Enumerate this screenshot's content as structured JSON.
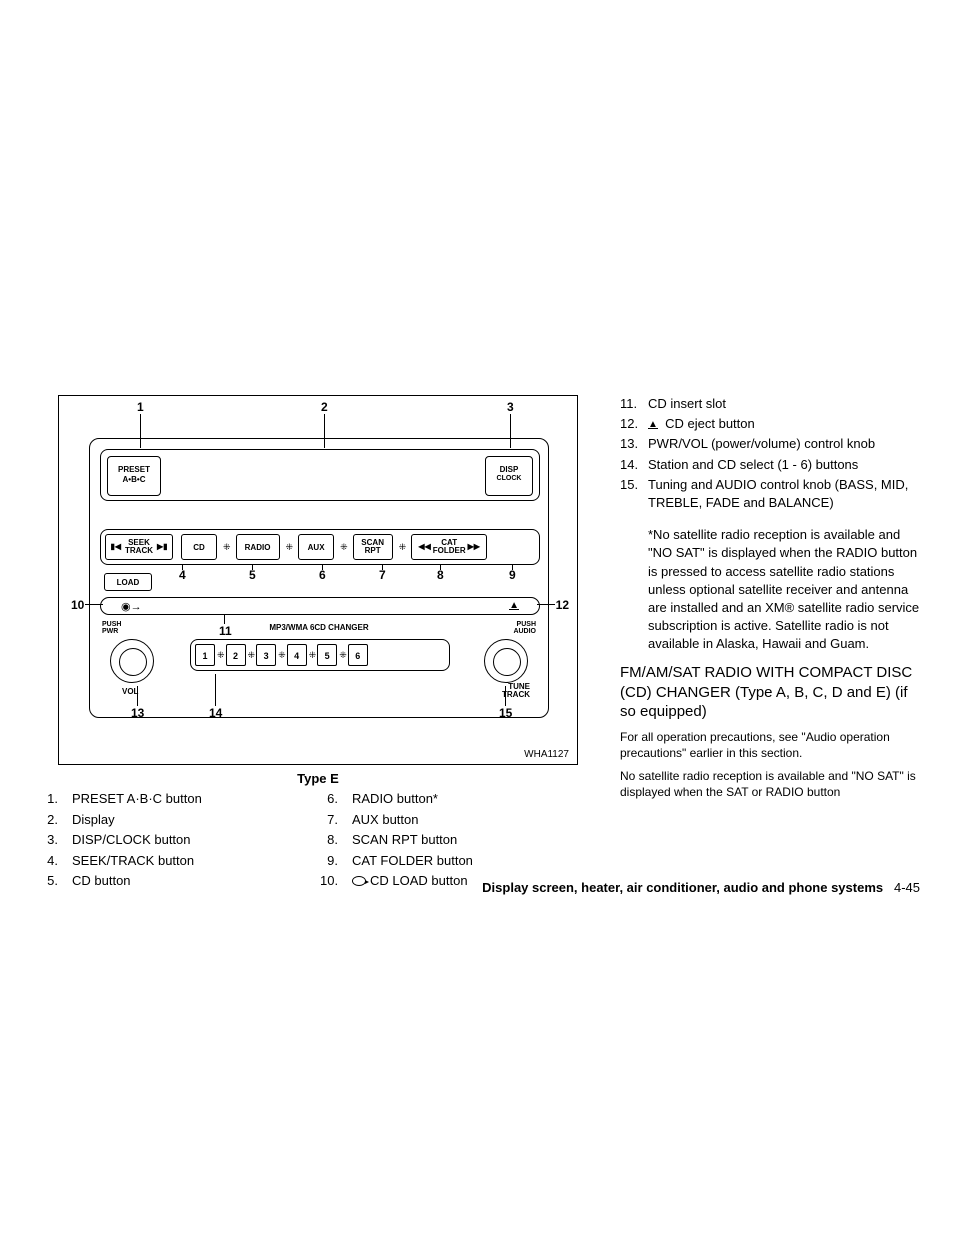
{
  "diagram": {
    "figure_code": "WHA1127",
    "type_label": "Type E",
    "preset_label_line1": "PRESET",
    "preset_label_line2": "A•B•C",
    "disp_label_line1": "DISP",
    "disp_label_line2": "CLOCK",
    "seek_label_line1": "SEEK",
    "seek_label_line2": "TRACK",
    "btn_cd": "CD",
    "btn_radio": "RADIO",
    "btn_aux": "AUX",
    "btn_scan_line1": "SCAN",
    "btn_scan_line2": "RPT",
    "btn_cat_line1": "CAT",
    "btn_cat_line2": "FOLDER",
    "btn_load": "LOAD",
    "push_pwr_line1": "PUSH",
    "push_pwr_line2": "PWR",
    "push_audio_line1": "PUSH",
    "push_audio_line2": "AUDIO",
    "vol_label": "VOL",
    "tune_label_line1": "TUNE",
    "tune_label_line2": "TRACK",
    "changer_label": "MP3/WMA 6CD CHANGER",
    "preset_numbers": [
      "1",
      "2",
      "3",
      "4",
      "5",
      "6"
    ],
    "callouts": {
      "1": "1",
      "2": "2",
      "3": "3",
      "4": "4",
      "5": "5",
      "6": "6",
      "7": "7",
      "8": "8",
      "9": "9",
      "10": "10",
      "11": "11",
      "12": "12",
      "13": "13",
      "14": "14",
      "15": "15"
    }
  },
  "legend_left": [
    {
      "n": "1.",
      "t": "PRESET A·B·C button"
    },
    {
      "n": "2.",
      "t": "Display"
    },
    {
      "n": "3.",
      "t": "DISP/CLOCK button"
    },
    {
      "n": "4.",
      "t": "SEEK/TRACK button"
    },
    {
      "n": "5.",
      "t": "CD button"
    }
  ],
  "legend_right": [
    {
      "n": "6.",
      "t": "RADIO button*"
    },
    {
      "n": "7.",
      "t": "AUX button"
    },
    {
      "n": "8.",
      "t": "SCAN RPT button"
    },
    {
      "n": "9.",
      "t": "CAT FOLDER button"
    },
    {
      "n": "10.",
      "t": "CD LOAD button",
      "icon": "cdload"
    }
  ],
  "right_list": [
    {
      "n": "11.",
      "t": "CD insert slot"
    },
    {
      "n": "12.",
      "t": "CD eject button",
      "icon": "eject"
    },
    {
      "n": "13.",
      "t": "PWR/VOL (power/volume) control knob"
    },
    {
      "n": "14.",
      "t": "Station and CD select (1 - 6) buttons"
    },
    {
      "n": "15.",
      "t": "Tuning and AUDIO control knob (BASS, MID, TREBLE, FADE and BALANCE)"
    }
  ],
  "note": "*No satellite radio reception is available and \"NO SAT\" is displayed when the RADIO button is pressed to access satellite radio stations unless optional satellite receiver and antenna are installed and an XM® satellite radio service subscription is active. Satellite radio is not available in Alaska, Hawaii and Guam.",
  "heading": "FM/AM/SAT RADIO WITH COMPACT DISC (CD) CHANGER (Type A, B, C, D and E) (if so equipped)",
  "para1": "For all operation precautions, see \"Audio operation precautions\" earlier in this section.",
  "para2": "No satellite radio reception is available and \"NO SAT\" is displayed when the SAT or RADIO button",
  "footer_title": "Display screen, heater, air conditioner, audio and phone systems",
  "footer_page": "4-45"
}
